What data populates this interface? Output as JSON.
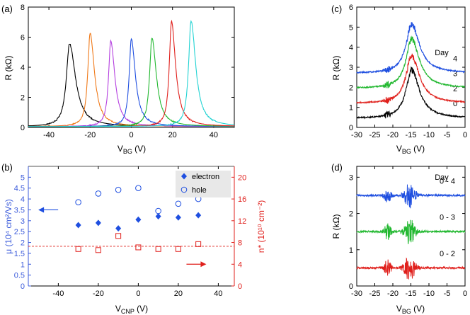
{
  "colors": {
    "black": "#000000",
    "orange": "#f07a1a",
    "purple": "#b540e0",
    "blue": "#1f4fe0",
    "green": "#22b830",
    "red": "#e0201c",
    "cyan": "#22d3d3",
    "axis_blue": "#3b5bdb",
    "axis_red": "#e0201c",
    "grey": "#555555"
  },
  "chart_data": [
    {
      "panel": "(a)",
      "type": "line",
      "xlabel": "V",
      "xlabel_sub": "BG",
      "xlabel_unit": " (V)",
      "ylabel": "R (kΩ)",
      "xlim": [
        -50,
        50
      ],
      "ylim": [
        0,
        8
      ],
      "xticks": [
        -40,
        -20,
        0,
        20,
        40
      ],
      "yticks": [
        0,
        2,
        4,
        6,
        8
      ],
      "series": [
        {
          "name": "black",
          "peak_x": -30,
          "peak_y": 5.5,
          "width": 2.2
        },
        {
          "name": "orange",
          "peak_x": -20,
          "peak_y": 6.2,
          "width": 1.6
        },
        {
          "name": "purple",
          "peak_x": -10,
          "peak_y": 5.7,
          "width": 1.5
        },
        {
          "name": "blue",
          "peak_x": 0,
          "peak_y": 5.8,
          "width": 1.5
        },
        {
          "name": "green",
          "peak_x": 10,
          "peak_y": 5.9,
          "width": 1.6
        },
        {
          "name": "red",
          "peak_x": 19.5,
          "peak_y": 7.0,
          "width": 1.5
        },
        {
          "name": "cyan",
          "peak_x": 29,
          "peak_y": 7.0,
          "width": 1.7
        }
      ]
    },
    {
      "panel": "(b)",
      "type": "scatter",
      "xlabel": "V",
      "xlabel_sub": "CNP",
      "xlabel_unit": " (V)",
      "ylabel_left": "μ (10⁴ cm²/Vs)",
      "ylabel_right": "n* (10¹⁰ cm⁻²)",
      "xlim": [
        -55,
        48
      ],
      "ylim_left": [
        0,
        5.5
      ],
      "ylim_right": [
        0,
        22
      ],
      "xticks": [
        -40,
        -20,
        0,
        20,
        40
      ],
      "yticks_left": [
        0,
        0.5,
        1,
        1.5,
        2,
        2.5,
        3,
        3.5,
        4,
        4.5,
        5
      ],
      "yticks_left_labels": [
        "0",
        "0.5",
        "1",
        "1.5",
        "2",
        "2.5",
        "3",
        "3.5",
        "4",
        "4.5",
        "5"
      ],
      "yticks_right": [
        0,
        4,
        8,
        12,
        16,
        20
      ],
      "legend": [
        "electron",
        "hole"
      ],
      "electron": {
        "x": [
          -30,
          -20,
          -10,
          0,
          10,
          20,
          30
        ],
        "y": [
          2.8,
          2.9,
          2.65,
          3.05,
          3.2,
          3.15,
          3.25
        ]
      },
      "hole": {
        "x": [
          -30,
          -20,
          -10,
          0,
          10,
          20,
          30
        ],
        "y": [
          3.85,
          4.25,
          4.42,
          4.5,
          3.45,
          3.78,
          4.0
        ]
      },
      "nstar": {
        "x": [
          -30,
          -20,
          -10,
          0,
          10,
          20,
          30
        ],
        "y": [
          6.8,
          6.6,
          9.2,
          7.1,
          6.8,
          6.8,
          7.7
        ]
      },
      "nstar_mean": 7.3
    },
    {
      "panel": "(c)",
      "type": "line",
      "xlabel": "V",
      "xlabel_sub": "BG",
      "xlabel_unit": " (V)",
      "ylabel": "R (kΩ)",
      "xlim": [
        -30,
        0
      ],
      "ylim": [
        0,
        6
      ],
      "xticks": [
        -30,
        -25,
        -20,
        -15,
        -10,
        -5,
        0
      ],
      "yticks": [
        0,
        1,
        2,
        3,
        4,
        5,
        6
      ],
      "legend_title": "Day",
      "series": [
        {
          "name": "0",
          "offset": 0.45,
          "peak": 2.45
        },
        {
          "name": "2",
          "offset": 1.2,
          "peak": 2.4
        },
        {
          "name": "3",
          "offset": 1.95,
          "peak": 2.5
        },
        {
          "name": "4",
          "offset": 2.7,
          "peak": 2.5
        }
      ]
    },
    {
      "panel": "(d)",
      "type": "line",
      "xlabel": "V",
      "xlabel_sub": "BG",
      "xlabel_unit": " (V)",
      "ylabel": "R (kΩ)",
      "xlim": [
        -30,
        0
      ],
      "ylim": [
        0,
        3.3
      ],
      "xticks": [
        -30,
        -25,
        -20,
        -15,
        -10,
        -5,
        0
      ],
      "yticks": [
        0,
        1,
        2,
        3
      ],
      "legend_title": "Day",
      "series": [
        {
          "name": "0 - 4",
          "offset": 2.5
        },
        {
          "name": "0 - 3",
          "offset": 1.5
        },
        {
          "name": "0 - 2",
          "offset": 0.5
        }
      ]
    }
  ]
}
